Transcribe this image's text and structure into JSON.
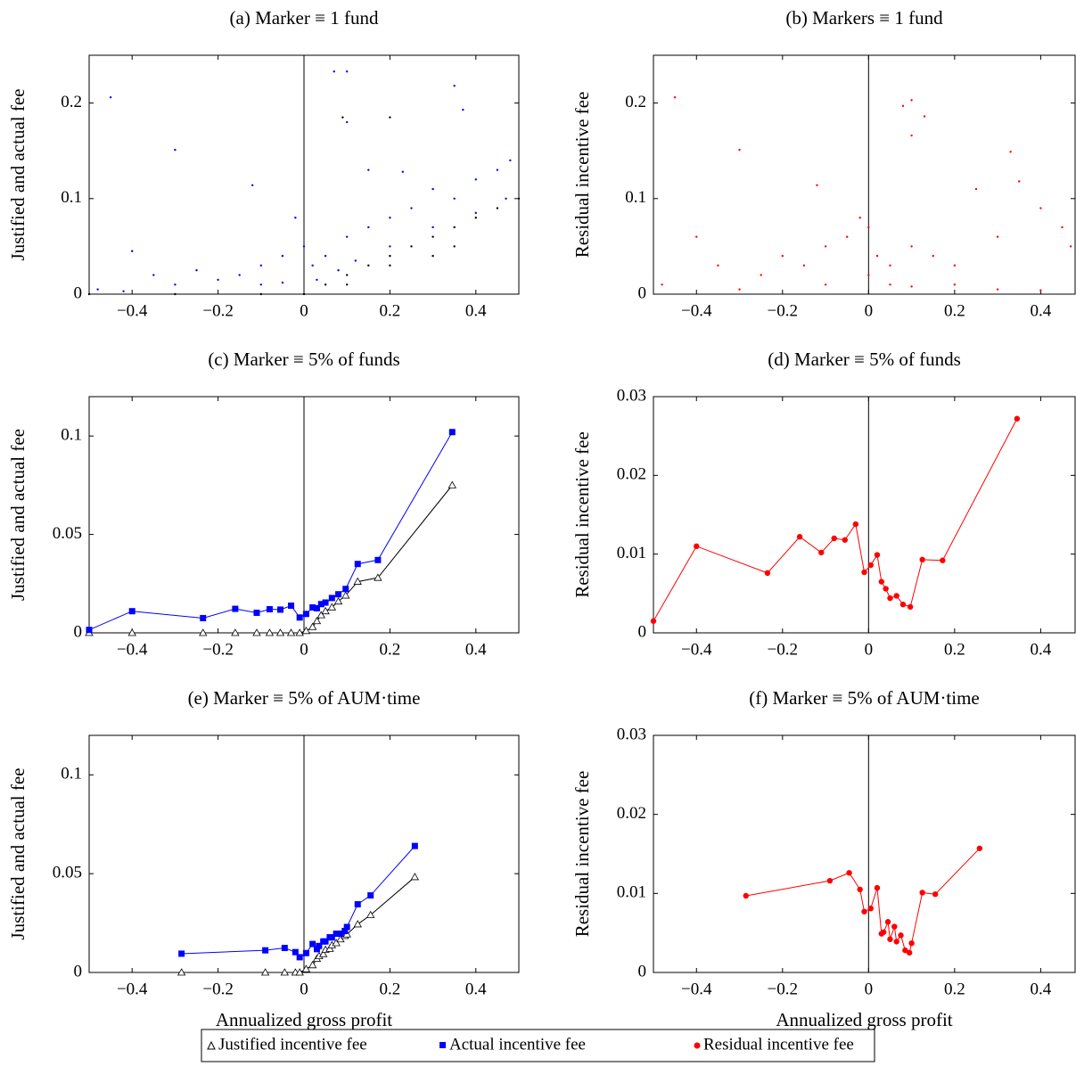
{
  "chart_data": [
    {
      "type": "scatter",
      "title": "(a) Marker ≡ 1 fund",
      "ylabel": "Justified and actual fee",
      "xlim": [
        -0.5,
        0.5
      ],
      "ylim": [
        0,
        0.25
      ],
      "xticks": [
        {
          "value": -0.4,
          "label": "−0.4"
        },
        {
          "value": -0.2,
          "label": "−0.2"
        },
        0,
        0.2,
        0.4
      ],
      "yticks": [
        0,
        0.1,
        0.2
      ],
      "series": [
        {
          "name": "Actual incentive fee",
          "color": "#0000ff",
          "x": [
            -0.45,
            -0.3,
            -0.12,
            0.07,
            0.1,
            0.35,
            0.37,
            0.23,
            0.1,
            0.15,
            -0.4,
            -0.35,
            -0.3,
            -0.25,
            -0.2,
            -0.15,
            -0.1,
            -0.05,
            -0.02,
            0.0,
            0.02,
            0.05,
            0.1,
            0.15,
            0.2,
            0.25,
            0.3,
            0.35,
            0.4,
            0.45,
            0.48,
            -0.48,
            -0.42,
            -0.1,
            -0.05,
            0.03,
            0.08,
            0.12,
            0.2,
            0.3,
            0.4,
            0.47
          ],
          "values": [
            0.206,
            0.151,
            0.114,
            0.233,
            0.233,
            0.218,
            0.193,
            0.128,
            0.18,
            0.13,
            0.045,
            0.02,
            0.01,
            0.025,
            0.015,
            0.02,
            0.03,
            0.04,
            0.08,
            0.05,
            0.03,
            0.04,
            0.06,
            0.07,
            0.08,
            0.09,
            0.11,
            0.1,
            0.12,
            0.13,
            0.14,
            0.005,
            0.003,
            0.01,
            0.012,
            0.015,
            0.025,
            0.035,
            0.05,
            0.07,
            0.085,
            0.1
          ]
        },
        {
          "name": "Justified incentive fee",
          "color": "#000000",
          "x": [
            -0.5,
            -0.3,
            -0.1,
            0,
            0.05,
            0.1,
            0.15,
            0.2,
            0.25,
            0.3,
            0.35,
            0.4,
            0.45,
            0.5,
            0.1,
            0.2,
            0.3,
            0.35,
            0.2,
            0.09
          ],
          "values": [
            0,
            0,
            0,
            0,
            0.01,
            0.02,
            0.03,
            0.04,
            0.05,
            0.06,
            0.07,
            0.08,
            0.09,
            0.1,
            0.01,
            0.03,
            0.04,
            0.05,
            0.185,
            0.185
          ]
        }
      ]
    },
    {
      "type": "scatter",
      "title": "(b) Markers ≡ 1 fund",
      "ylabel": "Residual incentive fee",
      "xlim": [
        -0.5,
        0.48
      ],
      "ylim": [
        0,
        0.25
      ],
      "xticks": [
        {
          "value": -0.4,
          "label": "−0.4"
        },
        {
          "value": -0.2,
          "label": "−0.2"
        },
        0,
        0.2,
        0.4
      ],
      "yticks": [
        0,
        0.1,
        0.2
      ],
      "series": [
        {
          "name": "Residual incentive fee",
          "color": "#ff0000",
          "x": [
            -0.45,
            -0.3,
            -0.12,
            0.08,
            0.1,
            0.13,
            0.1,
            0.33,
            0.35,
            -0.4,
            -0.35,
            -0.25,
            -0.2,
            -0.15,
            -0.1,
            -0.05,
            -0.02,
            0,
            0.02,
            0.05,
            0.1,
            0.15,
            0.2,
            0.25,
            0.3,
            0.4,
            0.45,
            -0.48,
            -0.3,
            -0.1,
            0,
            0.05,
            0.1,
            0.2,
            0.3,
            0.4,
            0.47
          ],
          "values": [
            0.206,
            0.151,
            0.114,
            0.197,
            0.203,
            0.186,
            0.166,
            0.149,
            0.118,
            0.06,
            0.03,
            0.02,
            0.04,
            0.03,
            0.05,
            0.06,
            0.08,
            0.07,
            0.04,
            0.03,
            0.05,
            0.04,
            0.03,
            0.11,
            0.06,
            0.09,
            0.07,
            0.01,
            0.005,
            0.01,
            0.02,
            0.01,
            0.008,
            0.01,
            0.005,
            0.004,
            0.05
          ]
        }
      ]
    },
    {
      "type": "line",
      "title": "(c) Marker ≡ 5% of funds",
      "ylabel": "Justified and actual fee",
      "xlim": [
        -0.5,
        0.5
      ],
      "ylim": [
        0,
        0.12
      ],
      "xticks": [
        {
          "value": -0.4,
          "label": "−0.4"
        },
        {
          "value": -0.2,
          "label": "−0.2"
        },
        0,
        0.2,
        0.4
      ],
      "yticks": [
        0,
        0.05,
        0.1
      ],
      "series": [
        {
          "name": "Justified incentive fee",
          "color": "#000000",
          "marker": "triangle",
          "x": [
            -0.5,
            -0.4,
            -0.235,
            -0.16,
            -0.11,
            -0.08,
            -0.055,
            -0.03,
            -0.01,
            0.005,
            0.02,
            0.03,
            0.04,
            0.05,
            0.065,
            0.08,
            0.097,
            0.125,
            0.172,
            0.345
          ],
          "values": [
            0,
            0,
            0,
            0,
            0,
            0,
            0,
            0,
            0,
            0.001,
            0.003,
            0.006,
            0.009,
            0.011,
            0.013,
            0.016,
            0.019,
            0.026,
            0.028,
            0.075
          ]
        },
        {
          "name": "Actual incentive fee",
          "color": "#0000ff",
          "marker": "square",
          "x": [
            -0.5,
            -0.4,
            -0.235,
            -0.16,
            -0.11,
            -0.08,
            -0.055,
            -0.03,
            -0.01,
            0.005,
            0.02,
            0.03,
            0.04,
            0.05,
            0.065,
            0.08,
            0.097,
            0.125,
            0.172,
            0.345
          ],
          "values": [
            0.0015,
            0.011,
            0.0075,
            0.0122,
            0.0102,
            0.012,
            0.0118,
            0.0138,
            0.0078,
            0.0096,
            0.0129,
            0.0125,
            0.0146,
            0.0154,
            0.0177,
            0.0196,
            0.0223,
            0.035,
            0.037,
            0.102
          ]
        }
      ]
    },
    {
      "type": "line",
      "title": "(d) Marker ≡ 5% of funds",
      "ylabel": "Residual incentive fee",
      "xlim": [
        -0.5,
        0.48
      ],
      "ylim": [
        0,
        0.03
      ],
      "xticks": [
        {
          "value": -0.4,
          "label": "−0.4"
        },
        {
          "value": -0.2,
          "label": "−0.2"
        },
        0,
        0.2,
        0.4
      ],
      "yticks": [
        0,
        0.01,
        0.02,
        0.03
      ],
      "series": [
        {
          "name": "Residual incentive fee",
          "color": "#ff0000",
          "marker": "circle",
          "x": [
            -0.5,
            -0.4,
            -0.235,
            -0.16,
            -0.11,
            -0.08,
            -0.055,
            -0.03,
            -0.01,
            0.005,
            0.02,
            0.03,
            0.04,
            0.05,
            0.065,
            0.08,
            0.097,
            0.125,
            0.172,
            0.345
          ],
          "values": [
            0.0015,
            0.011,
            0.0076,
            0.0122,
            0.0102,
            0.012,
            0.0118,
            0.0138,
            0.0077,
            0.0086,
            0.0099,
            0.0065,
            0.0056,
            0.0044,
            0.0047,
            0.0036,
            0.0033,
            0.0093,
            0.0092,
            0.0272
          ]
        }
      ]
    },
    {
      "type": "line",
      "title": "(e) Marker ≡ 5% of AUM·time",
      "ylabel": "Justified and actual fee",
      "xlabel": "Annualized gross profit",
      "xlim": [
        -0.5,
        0.5
      ],
      "ylim": [
        0,
        0.12
      ],
      "xticks": [
        {
          "value": -0.4,
          "label": "−0.4"
        },
        {
          "value": -0.2,
          "label": "−0.2"
        },
        0,
        0.2,
        0.4
      ],
      "yticks": [
        0,
        0.05,
        0.1
      ],
      "series": [
        {
          "name": "Justified incentive fee",
          "color": "#000000",
          "marker": "triangle",
          "x": [
            -0.285,
            -0.09,
            -0.045,
            -0.02,
            -0.01,
            0.005,
            0.02,
            0.03,
            0.035,
            0.045,
            0.05,
            0.06,
            0.065,
            0.075,
            0.085,
            0.095,
            0.1,
            0.125,
            0.155,
            0.258
          ],
          "values": [
            0,
            0,
            0,
            0,
            0,
            0.0017,
            0.0037,
            0.0069,
            0.0083,
            0.0093,
            0.0115,
            0.012,
            0.0138,
            0.0149,
            0.0168,
            0.0185,
            0.0193,
            0.0244,
            0.0291,
            0.0483
          ]
        },
        {
          "name": "Actual incentive fee",
          "color": "#0000ff",
          "marker": "square",
          "x": [
            -0.285,
            -0.09,
            -0.045,
            -0.02,
            -0.01,
            0.005,
            0.02,
            0.03,
            0.035,
            0.045,
            0.05,
            0.06,
            0.065,
            0.075,
            0.085,
            0.095,
            0.1,
            0.125,
            0.155,
            0.258
          ],
          "values": [
            0.0095,
            0.0112,
            0.0124,
            0.0103,
            0.0077,
            0.0098,
            0.0144,
            0.0118,
            0.0134,
            0.0157,
            0.0157,
            0.0178,
            0.0177,
            0.0196,
            0.0196,
            0.021,
            0.023,
            0.0345,
            0.039,
            0.064
          ]
        }
      ]
    },
    {
      "type": "line",
      "title": "(f) Marker ≡ 5% of AUM·time",
      "ylabel": "Residual incentive fee",
      "xlabel": "Annualized gross profit",
      "xlim": [
        -0.5,
        0.48
      ],
      "ylim": [
        0,
        0.03
      ],
      "xticks": [
        {
          "value": -0.4,
          "label": "−0.4"
        },
        {
          "value": -0.2,
          "label": "−0.2"
        },
        0,
        0.2,
        0.4
      ],
      "yticks": [
        0,
        0.01,
        0.02,
        0.03
      ],
      "series": [
        {
          "name": "Residual incentive fee",
          "color": "#ff0000",
          "marker": "circle",
          "x": [
            -0.285,
            -0.09,
            -0.045,
            -0.02,
            -0.01,
            0.005,
            0.02,
            0.03,
            0.035,
            0.045,
            0.05,
            0.06,
            0.065,
            0.075,
            0.085,
            0.095,
            0.1,
            0.125,
            0.155,
            0.258
          ],
          "values": [
            0.0097,
            0.0116,
            0.0126,
            0.0105,
            0.0077,
            0.0081,
            0.0107,
            0.0049,
            0.0051,
            0.0064,
            0.0042,
            0.0058,
            0.0039,
            0.0047,
            0.0028,
            0.0025,
            0.0037,
            0.0101,
            0.0099,
            0.0157
          ]
        }
      ]
    }
  ]
}
